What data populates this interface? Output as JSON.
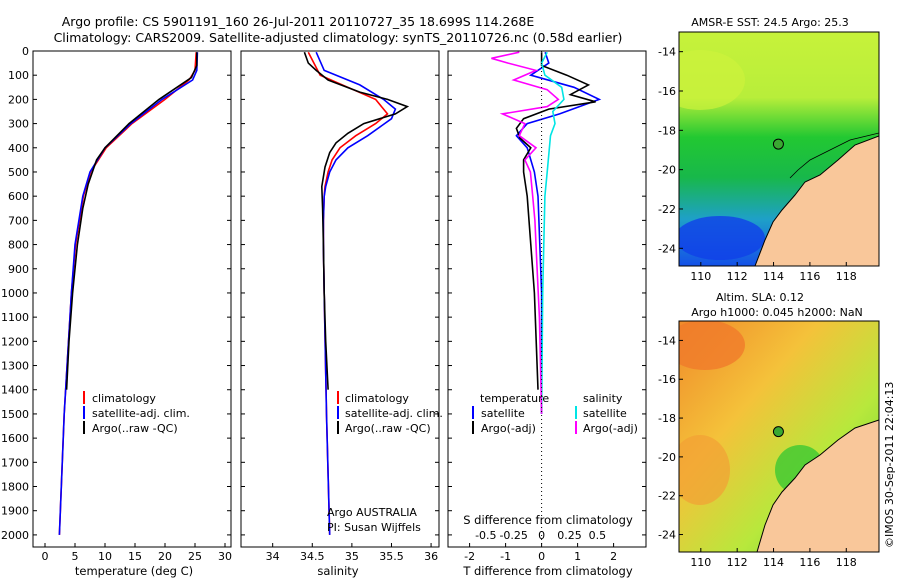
{
  "chart_data": {
    "title_line1": "Argo profile: CS 5901191_160 26-Jul-2011 20110727_35 18.699S 114.268E",
    "title_line2": "Climatology: CARS2009. Satellite-adjusted climatology: synTS_20110726.nc (0.58d earlier)",
    "depth_axis": {
      "ticks": [
        0,
        100,
        200,
        300,
        400,
        500,
        600,
        700,
        800,
        900,
        1000,
        1100,
        1200,
        1300,
        1400,
        1500,
        1600,
        1700,
        1800,
        1900,
        2000
      ],
      "ylim": [
        0,
        2050
      ]
    },
    "colors": {
      "climatology": "#ff0000",
      "satellite": "#0000ff",
      "argo": "#000000",
      "s_satellite": "#00e5e5",
      "s_argo": "#ff00ff",
      "land": "#f9c79a",
      "coast": "#000000"
    },
    "temperature_panel": {
      "type": "line",
      "xlabel": "temperature (deg C)",
      "xlim": [
        -2,
        31
      ],
      "xticks": [
        0,
        5,
        10,
        15,
        20,
        25,
        30
      ],
      "legend": [
        "climatology",
        "satellite-adj. clim.",
        "Argo(..raw -QC)"
      ],
      "series": [
        {
          "name": "climatology",
          "depth": [
            5,
            80,
            120,
            200,
            300,
            400,
            500,
            600,
            800,
            1000,
            1500,
            2000
          ],
          "values": [
            25.2,
            25.0,
            24.0,
            20.0,
            14.5,
            10.2,
            7.6,
            6.4,
            5.1,
            4.4,
            3.2,
            2.4
          ]
        },
        {
          "name": "satellite-adj. clim.",
          "depth": [
            5,
            80,
            120,
            200,
            300,
            400,
            500,
            600,
            800,
            1000,
            1500,
            2000
          ],
          "values": [
            25.4,
            25.3,
            24.6,
            19.5,
            14.3,
            10.0,
            7.5,
            6.3,
            5.0,
            4.4,
            3.2,
            2.4
          ]
        },
        {
          "name": "Argo(..raw -QC)",
          "depth": [
            5,
            60,
            110,
            200,
            300,
            400,
            450,
            550,
            650,
            800,
            1000,
            1200,
            1400
          ],
          "values": [
            25.3,
            25.3,
            24.4,
            19.0,
            14.0,
            10.0,
            8.6,
            7.2,
            6.3,
            5.4,
            4.6,
            4.0,
            3.6
          ]
        }
      ]
    },
    "salinity_panel": {
      "type": "line",
      "xlabel": "salinity",
      "xlim": [
        33.6,
        36.1
      ],
      "xticks": [
        34,
        34.5,
        35,
        35.5,
        36
      ],
      "xticklabels": [
        "34",
        "34.5",
        "35",
        "35.5",
        "36"
      ],
      "legend": [
        "climatology",
        "satellite-adj. clim.",
        "Argo(..raw -QC)"
      ],
      "annotation_line1": "Argo AUSTRALIA",
      "annotation_line2": "PI: Susan Wijffels",
      "series": [
        {
          "name": "climatology",
          "depth": [
            5,
            100,
            150,
            200,
            260,
            300,
            350,
            400,
            450,
            500,
            560,
            600,
            700,
            800,
            1000,
            1500,
            2000
          ],
          "values": [
            34.45,
            34.6,
            34.95,
            35.3,
            35.45,
            35.3,
            35.05,
            34.85,
            34.75,
            34.7,
            34.66,
            34.65,
            34.64,
            34.64,
            34.65,
            34.68,
            34.72
          ]
        },
        {
          "name": "satellite-adj. clim.",
          "depth": [
            5,
            80,
            140,
            200,
            240,
            280,
            350,
            400,
            450,
            500,
            560,
            600,
            700,
            800,
            1000,
            1500,
            2000
          ],
          "values": [
            34.55,
            34.65,
            35.1,
            35.4,
            35.55,
            35.5,
            35.2,
            34.95,
            34.8,
            34.72,
            34.67,
            34.65,
            34.64,
            34.64,
            34.65,
            34.68,
            34.72
          ]
        },
        {
          "name": "Argo(..raw -QC)",
          "depth": [
            5,
            50,
            80,
            120,
            170,
            200,
            230,
            260,
            300,
            340,
            380,
            420,
            480,
            560,
            650,
            800,
            1000,
            1200,
            1400
          ],
          "values": [
            34.4,
            34.45,
            34.55,
            34.7,
            35.1,
            35.45,
            35.7,
            35.55,
            35.15,
            34.95,
            34.8,
            34.72,
            34.66,
            34.62,
            34.63,
            34.64,
            34.65,
            34.67,
            34.7
          ]
        }
      ]
    },
    "difference_panel": {
      "type": "line",
      "xlabel_bottom": "T difference from climatology",
      "xlabel_top": "S difference from climatology",
      "t_xlim": [
        -2.6,
        2.9
      ],
      "t_xticks": [
        -2,
        -1,
        0,
        1,
        2
      ],
      "s_ticks": [
        -0.5,
        -0.25,
        0,
        0.25,
        0.5
      ],
      "s_ticklabels": [
        "-0.5",
        "-0.25",
        "0",
        "0.25",
        "0.5"
      ],
      "legend_temperature_title": "temperature",
      "legend_salinity_title": "salinity",
      "legend_entries": [
        "satellite",
        "Argo(-adj)"
      ],
      "series": [
        {
          "name": "temperature satellite",
          "depth": [
            5,
            50,
            100,
            150,
            200,
            260,
            300,
            350,
            400,
            450,
            500,
            600,
            800,
            1000,
            1500
          ],
          "values": [
            0.1,
            0.2,
            -0.3,
            0.9,
            1.6,
            0.5,
            -0.4,
            -0.7,
            -0.4,
            -0.3,
            -0.2,
            -0.1,
            -0.05,
            0.0,
            0.0
          ]
        },
        {
          "name": "temperature Argo(-adj)",
          "depth": [
            5,
            60,
            100,
            140,
            180,
            210,
            240,
            280,
            320,
            360,
            400,
            450,
            500,
            600,
            700,
            800,
            1000,
            1200,
            1400
          ],
          "values": [
            0.0,
            0.0,
            0.7,
            1.3,
            0.8,
            1.5,
            0.2,
            -0.5,
            -0.7,
            -0.6,
            -0.3,
            -0.5,
            -0.5,
            -0.4,
            -0.35,
            -0.3,
            -0.2,
            -0.15,
            -0.1
          ]
        },
        {
          "name": "salinity satellite",
          "depth": [
            5,
            50,
            100,
            150,
            200,
            250,
            300,
            350,
            400,
            500,
            600,
            800,
            1000,
            1500
          ],
          "values": [
            0.05,
            0.0,
            0.03,
            0.18,
            0.2,
            0.1,
            0.12,
            0.08,
            0.07,
            0.05,
            0.03,
            0.02,
            0.01,
            0.0
          ]
        },
        {
          "name": "salinity Argo(-adj)",
          "depth": [
            5,
            30,
            50,
            80,
            120,
            160,
            200,
            230,
            260,
            300,
            350,
            400,
            450,
            500,
            600,
            700,
            900,
            1100,
            1500
          ],
          "values": [
            -0.2,
            -0.45,
            -0.3,
            -0.05,
            -0.25,
            0.05,
            0.15,
            0.05,
            -0.35,
            -0.15,
            -0.2,
            -0.05,
            -0.15,
            -0.1,
            -0.08,
            -0.06,
            -0.04,
            -0.02,
            0.0
          ]
        }
      ]
    },
    "sst_map": {
      "type": "heatmap",
      "title": "AMSR-E SST: 24.5 Argo: 25.3",
      "xticks": [
        110,
        112,
        114,
        116,
        118
      ],
      "yticks": [
        -14,
        -16,
        -18,
        -20,
        -22,
        -24
      ],
      "xlim": [
        108.8,
        119.8
      ],
      "ylim": [
        -24.9,
        -13.0
      ],
      "argo_lon": 114.268,
      "argo_lat": -18.699
    },
    "sla_map": {
      "type": "heatmap",
      "title_line1": "Altim. SLA: 0.12",
      "title_line2": "Argo h1000: 0.045 h2000: NaN",
      "xticks": [
        110,
        112,
        114,
        116,
        118
      ],
      "yticks": [
        -14,
        -16,
        -18,
        -20,
        -22,
        -24
      ],
      "xlim": [
        108.8,
        119.8
      ],
      "ylim": [
        -24.9,
        -13.0
      ],
      "argo_lon": 114.268,
      "argo_lat": -18.699
    },
    "stamp": "©IMOS 30-Sep-2011 22:04:13"
  }
}
